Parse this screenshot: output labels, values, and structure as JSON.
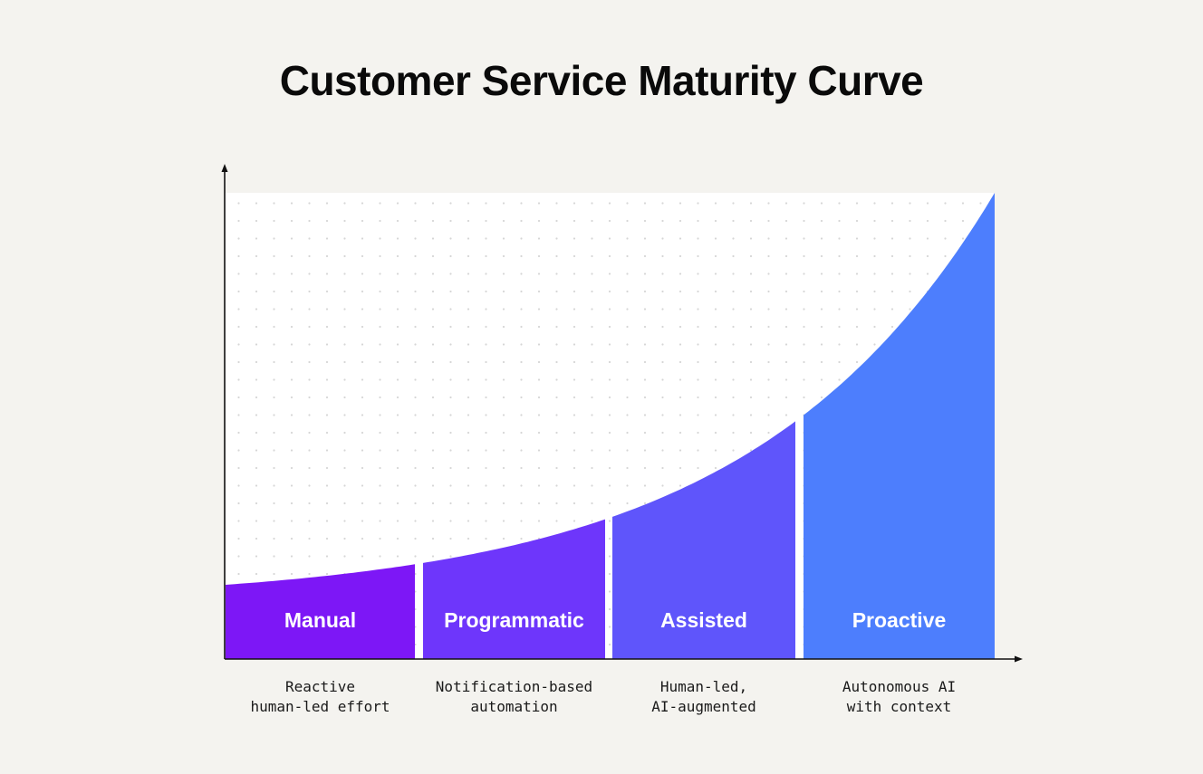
{
  "title": "Customer Service Maturity Curve",
  "colors": {
    "background": "#f4f3ef",
    "plot_background": "#ffffff",
    "dot_grid": "#d6d6d6",
    "axis": "#111111",
    "stage_fills": [
      "#7d17f6",
      "#6e36fb",
      "#5f55fb",
      "#4d7efd"
    ]
  },
  "stages": [
    {
      "label": "Manual",
      "description_lines": [
        "Reactive",
        "human-led effort"
      ]
    },
    {
      "label": "Programmatic",
      "description_lines": [
        "Notification-based",
        "automation"
      ]
    },
    {
      "label": "Assisted",
      "description_lines": [
        "Human-led,",
        "AI-augmented"
      ]
    },
    {
      "label": "Proactive",
      "description_lines": [
        "Autonomous AI",
        "with context"
      ]
    }
  ]
}
